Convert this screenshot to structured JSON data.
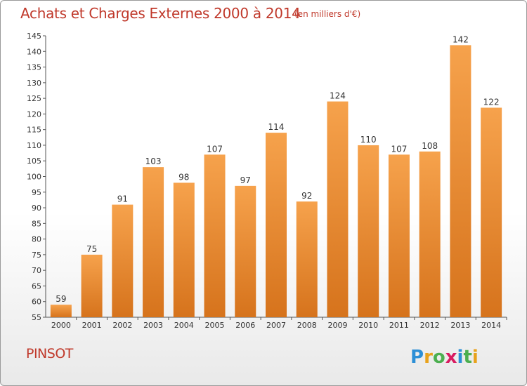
{
  "header": {
    "title": "Achats et Charges Externes 2000 à 2014",
    "subtitle": "(en milliers d'€)"
  },
  "footer": {
    "place": "PINSOT",
    "logo_text": "Proxiti"
  },
  "colors": {
    "bar_light": "#f6a24c",
    "bar_dark": "#d6731c",
    "title": "#c0392b"
  },
  "chart_data": {
    "type": "bar",
    "title": "Achats et Charges Externes 2000 à 2014",
    "subtitle": "(en milliers d'€)",
    "categories": [
      "2000",
      "2001",
      "2002",
      "2003",
      "2004",
      "2005",
      "2006",
      "2007",
      "2008",
      "2009",
      "2010",
      "2011",
      "2012",
      "2013",
      "2014"
    ],
    "values": [
      59,
      75,
      91,
      103,
      98,
      107,
      97,
      114,
      92,
      124,
      110,
      107,
      108,
      142,
      122
    ],
    "xlabel": "",
    "ylabel": "",
    "ylim": [
      55,
      145
    ],
    "yticks": [
      55,
      60,
      65,
      70,
      75,
      80,
      85,
      90,
      95,
      100,
      105,
      110,
      115,
      120,
      125,
      130,
      135,
      140,
      145
    ],
    "grid": false,
    "legend": "none",
    "data_labels": true
  }
}
